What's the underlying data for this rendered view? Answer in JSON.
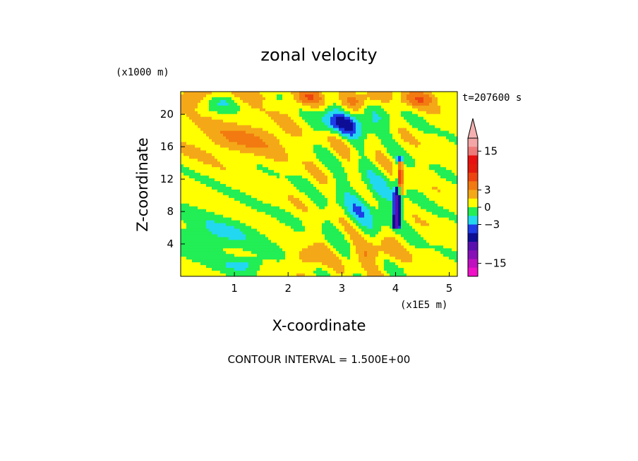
{
  "chart_data": {
    "type": "heatmap",
    "title": "zonal velocity",
    "xlabel": "X-coordinate",
    "ylabel": "Z-coordinate",
    "x_unit": "(x1E5 m)",
    "y_unit": "(x1000 m)",
    "time_label": "t=207600 s",
    "footer": "CONTOUR INTERVAL = 1.500E+00",
    "xlim": [
      0,
      5.15
    ],
    "ylim": [
      0,
      22.8
    ],
    "x_ticks": [
      1,
      2,
      3,
      4,
      5
    ],
    "y_ticks": [
      4,
      8,
      12,
      16,
      20
    ],
    "grid": false,
    "colorbar": {
      "placement": "right",
      "tick_labels": [
        "15",
        "3",
        "0",
        "-3",
        "-15"
      ],
      "tick_values": [
        15,
        3,
        0,
        -3,
        -15
      ],
      "levels": [
        {
          "lo": 19.5,
          "hi": 21.0,
          "color": "#f4b0b0"
        },
        {
          "lo": 16.5,
          "hi": 19.5,
          "color": "#f4a6a6"
        },
        {
          "lo": 13.5,
          "hi": 16.5,
          "color": "#ee7a7a"
        },
        {
          "lo": 10.5,
          "hi": 13.5,
          "color": "#e81010"
        },
        {
          "lo": 7.5,
          "hi": 10.5,
          "color": "#e41a0c"
        },
        {
          "lo": 4.5,
          "hi": 7.5,
          "color": "#ee4410"
        },
        {
          "lo": 3.0,
          "hi": 4.5,
          "color": "#f27a10"
        },
        {
          "lo": 1.5,
          "hi": 3.0,
          "color": "#f4a818"
        },
        {
          "lo": 0.0,
          "hi": 1.5,
          "color": "#ffff00"
        },
        {
          "lo": -1.5,
          "hi": 0.0,
          "color": "#22ee55"
        },
        {
          "lo": -3.0,
          "hi": -1.5,
          "color": "#22d8f0"
        },
        {
          "lo": -4.5,
          "hi": -3.0,
          "color": "#1e3ce8"
        },
        {
          "lo": -7.5,
          "hi": -4.5,
          "color": "#0d0d96"
        },
        {
          "lo": -10.5,
          "hi": -7.5,
          "color": "#5a10b0"
        },
        {
          "lo": -13.5,
          "hi": -10.5,
          "color": "#8810b8"
        },
        {
          "lo": -16.5,
          "hi": -13.5,
          "color": "#c010c0"
        },
        {
          "lo": -19.5,
          "hi": -16.5,
          "color": "#f010c8"
        }
      ]
    }
  }
}
